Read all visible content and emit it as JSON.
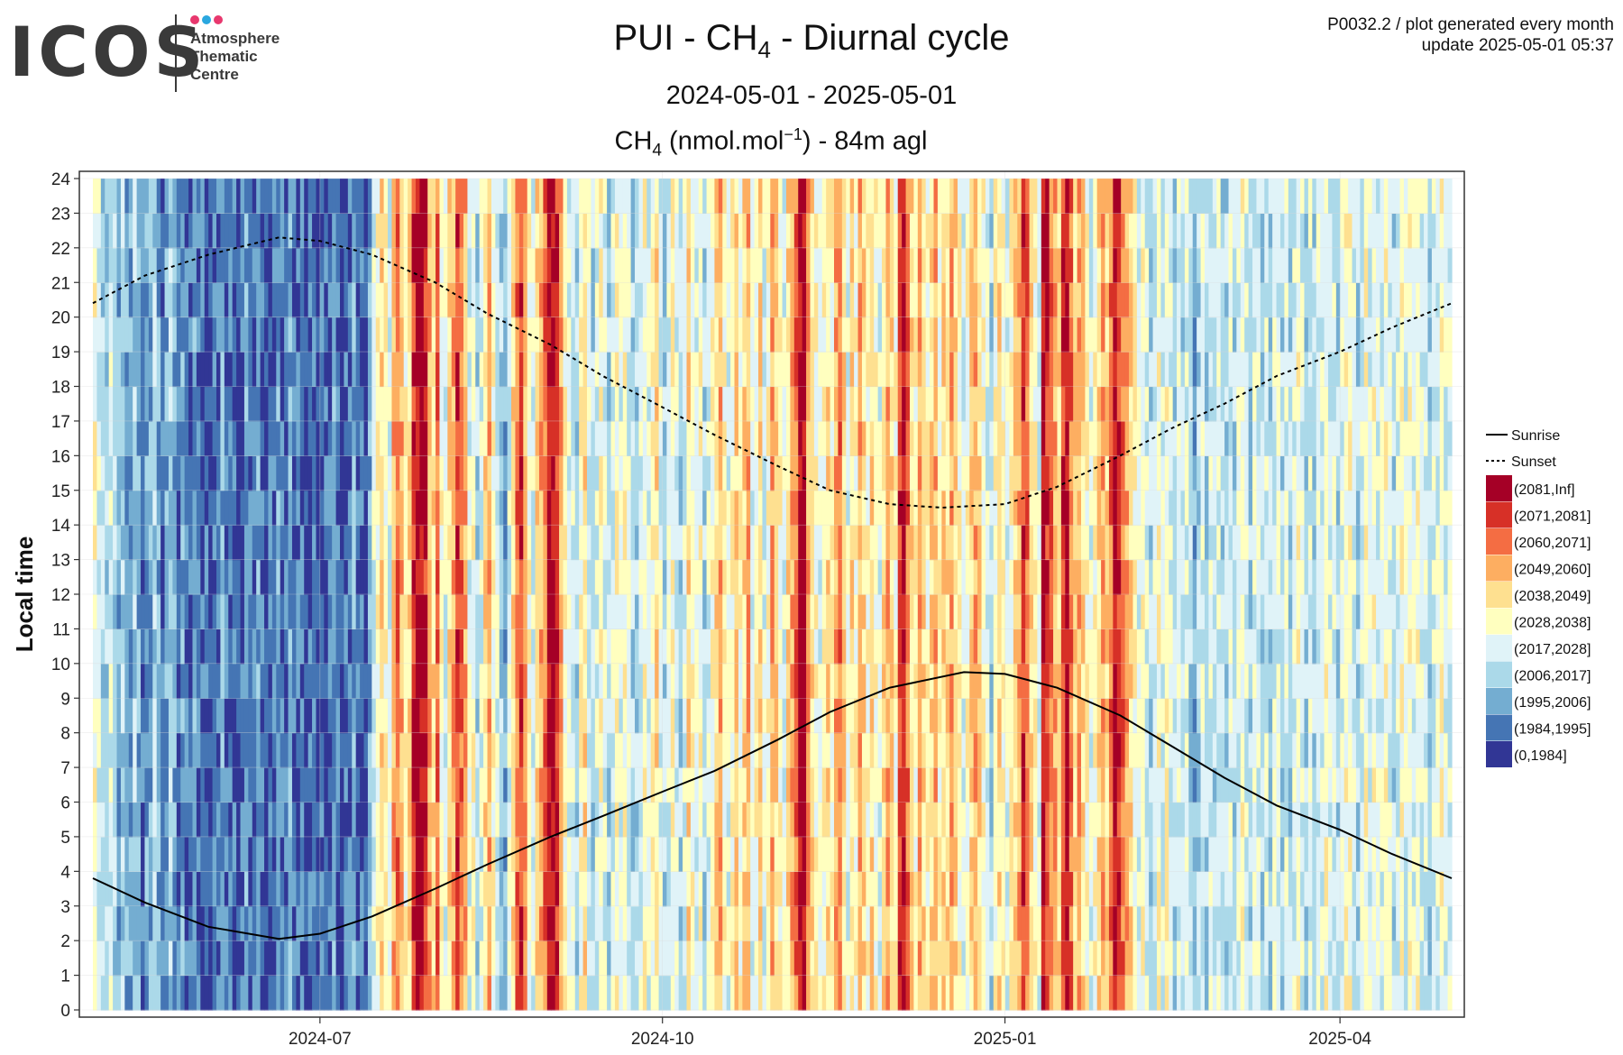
{
  "logo": {
    "mark": "ICOS",
    "lines": [
      "Atmosphere",
      "Thematic",
      "Centre"
    ],
    "dot_colors": [
      "#e8386e",
      "#2aa7df",
      "#e8386e"
    ]
  },
  "header": {
    "title_prefix": "PUI - CH",
    "title_sub": "4",
    "title_suffix": " - Diurnal cycle",
    "subtitle": "2024-05-01 - 2025-05-01",
    "var_prefix": "CH",
    "var_sub": "4",
    "var_mid": " (nmol.mol",
    "var_sup": "−1",
    "var_suffix": ") - 84m agl",
    "meta_line1": "P0032.2 / plot generated every month",
    "meta_line2": "update  2025-05-01 05:37"
  },
  "chart_data": {
    "type": "heatmap",
    "title": "PUI - CH4 - Diurnal cycle",
    "subtitle": "2024-05-01 - 2025-05-01",
    "value_label": "CH4 (nmol.mol-1) - 84m agl",
    "ylabel": "Local time",
    "xlabel": "",
    "x_range": [
      "2024-05-01",
      "2025-05-01"
    ],
    "x_ticks": [
      "2024-07",
      "2024-10",
      "2025-01",
      "2025-04"
    ],
    "y_range": [
      0,
      24
    ],
    "y_ticks": [
      0,
      1,
      2,
      3,
      4,
      5,
      6,
      7,
      8,
      9,
      10,
      11,
      12,
      13,
      14,
      15,
      16,
      17,
      18,
      19,
      20,
      21,
      22,
      23,
      24
    ],
    "grid": true,
    "legend_position": "right",
    "bins": [
      {
        "label": "(2081,Inf]",
        "color": "#a50026"
      },
      {
        "label": "(2071,2081]",
        "color": "#d73027"
      },
      {
        "label": "(2060,2071]",
        "color": "#f46d43"
      },
      {
        "label": "(2049,2060]",
        "color": "#fdae61"
      },
      {
        "label": "(2038,2049]",
        "color": "#fee090"
      },
      {
        "label": "(2028,2038]",
        "color": "#ffffbf"
      },
      {
        "label": "(2017,2028]",
        "color": "#e0f3f8"
      },
      {
        "label": "(2006,2017]",
        "color": "#abd9e9"
      },
      {
        "label": "(1995,2006]",
        "color": "#74add1"
      },
      {
        "label": "(1984,1995]",
        "color": "#4575b4"
      },
      {
        "label": "(0,1984]",
        "color": "#313695"
      }
    ],
    "lines": [
      {
        "name": "Sunrise",
        "style": "solid",
        "points": [
          [
            "2024-05-01",
            3.8
          ],
          [
            "2024-05-15",
            3.1
          ],
          [
            "2024-06-01",
            2.4
          ],
          [
            "2024-06-20",
            2.05
          ],
          [
            "2024-07-01",
            2.2
          ],
          [
            "2024-07-15",
            2.7
          ],
          [
            "2024-08-01",
            3.5
          ],
          [
            "2024-08-15",
            4.2
          ],
          [
            "2024-09-01",
            5.0
          ],
          [
            "2024-09-15",
            5.6
          ],
          [
            "2024-10-01",
            6.3
          ],
          [
            "2024-10-15",
            6.9
          ],
          [
            "2024-11-01",
            7.8
          ],
          [
            "2024-11-15",
            8.6
          ],
          [
            "2024-12-01",
            9.3
          ],
          [
            "2024-12-21",
            9.75
          ],
          [
            "2025-01-01",
            9.7
          ],
          [
            "2025-01-15",
            9.3
          ],
          [
            "2025-02-01",
            8.5
          ],
          [
            "2025-02-15",
            7.6
          ],
          [
            "2025-03-01",
            6.7
          ],
          [
            "2025-03-15",
            5.9
          ],
          [
            "2025-04-01",
            5.2
          ],
          [
            "2025-04-15",
            4.5
          ],
          [
            "2025-05-01",
            3.8
          ]
        ]
      },
      {
        "name": "Sunset",
        "style": "dashed",
        "points": [
          [
            "2024-05-01",
            20.4
          ],
          [
            "2024-05-15",
            21.2
          ],
          [
            "2024-06-01",
            21.8
          ],
          [
            "2024-06-20",
            22.3
          ],
          [
            "2024-07-01",
            22.2
          ],
          [
            "2024-07-15",
            21.8
          ],
          [
            "2024-08-01",
            21.0
          ],
          [
            "2024-08-15",
            20.1
          ],
          [
            "2024-09-01",
            19.2
          ],
          [
            "2024-09-15",
            18.3
          ],
          [
            "2024-10-01",
            17.4
          ],
          [
            "2024-10-15",
            16.6
          ],
          [
            "2024-11-01",
            15.7
          ],
          [
            "2024-11-15",
            15.0
          ],
          [
            "2024-12-01",
            14.6
          ],
          [
            "2024-12-15",
            14.5
          ],
          [
            "2025-01-01",
            14.6
          ],
          [
            "2025-01-15",
            15.1
          ],
          [
            "2025-02-01",
            16.0
          ],
          [
            "2025-02-15",
            16.8
          ],
          [
            "2025-03-01",
            17.5
          ],
          [
            "2025-03-15",
            18.3
          ],
          [
            "2025-04-01",
            19.0
          ],
          [
            "2025-04-15",
            19.7
          ],
          [
            "2025-05-01",
            20.4
          ]
        ]
      }
    ],
    "daily_levels": [
      5,
      6,
      7,
      7,
      6,
      7,
      8,
      7,
      8,
      8,
      7,
      8,
      9,
      8,
      8,
      7,
      8,
      9,
      8,
      7,
      8,
      9,
      8,
      9,
      9,
      8,
      9,
      9,
      9,
      10,
      9,
      9,
      8,
      9,
      9,
      9,
      10,
      9,
      8,
      9,
      9,
      8,
      9,
      10,
      9,
      9,
      8,
      9,
      9,
      8,
      9,
      9,
      9,
      10,
      9,
      9,
      10,
      9,
      9,
      9,
      8,
      9,
      10,
      9,
      9,
      8,
      9,
      9,
      10,
      8,
      6,
      5,
      4,
      5,
      6,
      3,
      2,
      3,
      5,
      4,
      1,
      0,
      0,
      1,
      3,
      4,
      2,
      5,
      6,
      4,
      3,
      1,
      2,
      3,
      6,
      5,
      7,
      6,
      4,
      3,
      5,
      6,
      7,
      8,
      6,
      4,
      2,
      1,
      3,
      5,
      6,
      4,
      3,
      2,
      0,
      0,
      1,
      3,
      5,
      6,
      6,
      7,
      5,
      4,
      6,
      7,
      6,
      5,
      6,
      7,
      6,
      5,
      6,
      5,
      6,
      7,
      7,
      6,
      5,
      6,
      5,
      4,
      6,
      7,
      6,
      5,
      6,
      7,
      6,
      4,
      5,
      6,
      5,
      7,
      6,
      5,
      4,
      3,
      5,
      6,
      5,
      4,
      5,
      4,
      3,
      6,
      5,
      4,
      6,
      5,
      3,
      4,
      5,
      6,
      4,
      3,
      2,
      0,
      0,
      3,
      4,
      5,
      6,
      5,
      4,
      5,
      3,
      2,
      4,
      6,
      4,
      5,
      3,
      4,
      5,
      4,
      5,
      6,
      4,
      3,
      4,
      5,
      1,
      0,
      2,
      4,
      5,
      3,
      4,
      5,
      4,
      3,
      5,
      4,
      4,
      3,
      4,
      5,
      6,
      5,
      4,
      3,
      4,
      5,
      6,
      7,
      5,
      4,
      5,
      6,
      5,
      4,
      3,
      1,
      2,
      4,
      5,
      6,
      0,
      1,
      2,
      3,
      4,
      1,
      0,
      2,
      4,
      3,
      4,
      5,
      6,
      5,
      4,
      3,
      4,
      2,
      0,
      1,
      2,
      3,
      4,
      5,
      6,
      5,
      6,
      7,
      6,
      5,
      6,
      5,
      6,
      7,
      6,
      7,
      6,
      7,
      8,
      7,
      6,
      7,
      6,
      7,
      6,
      7,
      7,
      6,
      7,
      6,
      5,
      6,
      7,
      6,
      6,
      7,
      6,
      7,
      6,
      6,
      7,
      6,
      7,
      6,
      5,
      6,
      7,
      6,
      7,
      6,
      6,
      5,
      6,
      6,
      7,
      6,
      5,
      5,
      6,
      7,
      6,
      5,
      6,
      5,
      6,
      6,
      5,
      6,
      7,
      6,
      5,
      6,
      5,
      6,
      5,
      6,
      6,
      7,
      6,
      6,
      5,
      6,
      6
    ]
  }
}
